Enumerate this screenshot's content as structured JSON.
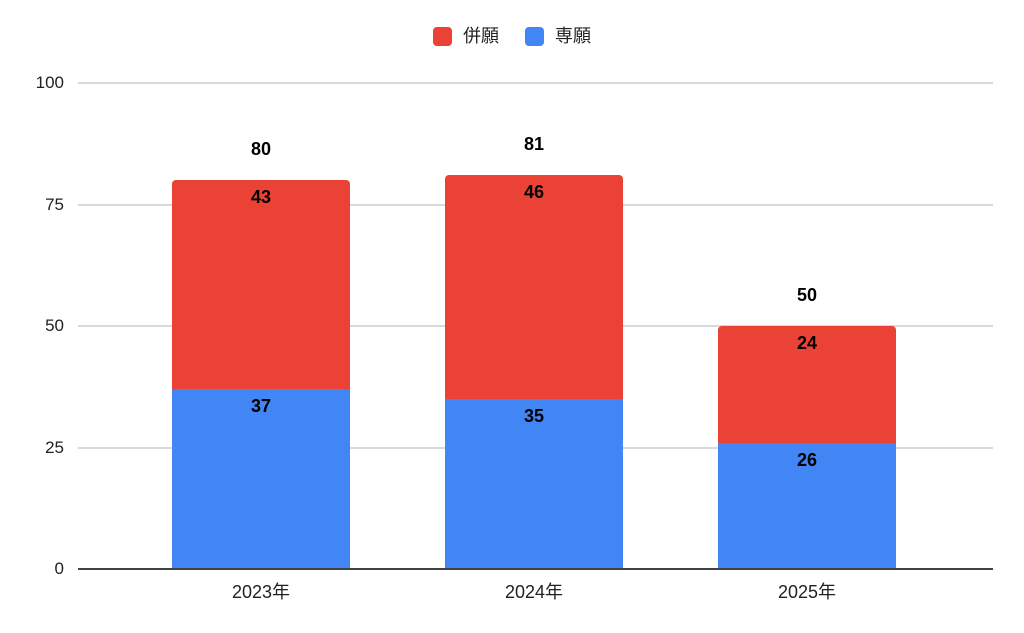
{
  "chart_data": {
    "type": "bar",
    "stacked": true,
    "title": "",
    "categories": [
      "2023年",
      "2024年",
      "2025年"
    ],
    "series": [
      {
        "name": "併願",
        "color": "#EA4335",
        "values": [
          43,
          46,
          24
        ]
      },
      {
        "name": "専願",
        "color": "#4285F4",
        "values": [
          37,
          35,
          26
        ]
      }
    ],
    "totals": [
      80,
      81,
      50
    ],
    "xlabel": "",
    "ylabel": "",
    "ylim": [
      0,
      100
    ],
    "yticks": [
      0,
      25,
      50,
      75,
      100
    ],
    "grid": true,
    "legend_position": "top",
    "gridline_color": "#D9D9D9",
    "axis_line_color": "#424242",
    "label_color": "#000000"
  }
}
